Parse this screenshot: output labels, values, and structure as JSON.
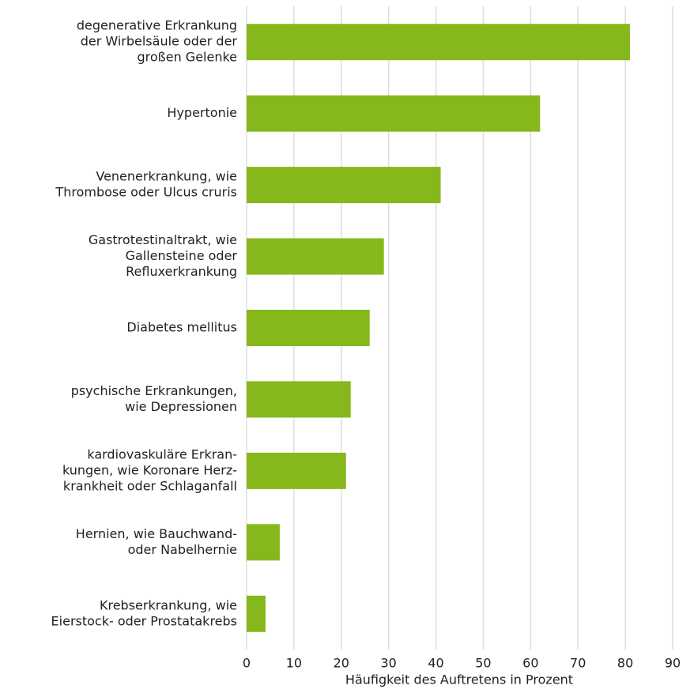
{
  "chart_data": {
    "type": "hbar",
    "categories": [
      [
        "degenerative Erkrankung",
        "der Wirbelsäule oder der",
        "großen Gelenke"
      ],
      [
        "Hypertonie"
      ],
      [
        "Venenerkrankung, wie",
        "Thrombose oder Ulcus cruris"
      ],
      [
        "Gastrotestinaltrakt, wie",
        "Gallensteine oder",
        "Refluxerkrankung"
      ],
      [
        "Diabetes mellitus"
      ],
      [
        "psychische Erkrankungen,",
        "wie Depressionen"
      ],
      [
        "kardiovaskuläre Erkran-",
        "kungen, wie Koronare Herz-",
        "krankheit oder Schlaganfall"
      ],
      [
        "Hernien, wie Bauchwand-",
        "oder Nabelhernie"
      ],
      [
        "Krebserkrankung, wie",
        "Eierstock- oder Prostatakrebs"
      ]
    ],
    "values": [
      81,
      62,
      41,
      29,
      26,
      22,
      21,
      7,
      4
    ],
    "color": "#86b81b",
    "xlabel": "Häufigkeit des Auftretens in Prozent",
    "xlim": [
      0,
      90
    ],
    "xticks": [
      0,
      10,
      20,
      30,
      40,
      50,
      60,
      70,
      80,
      90
    ],
    "grid": true
  }
}
